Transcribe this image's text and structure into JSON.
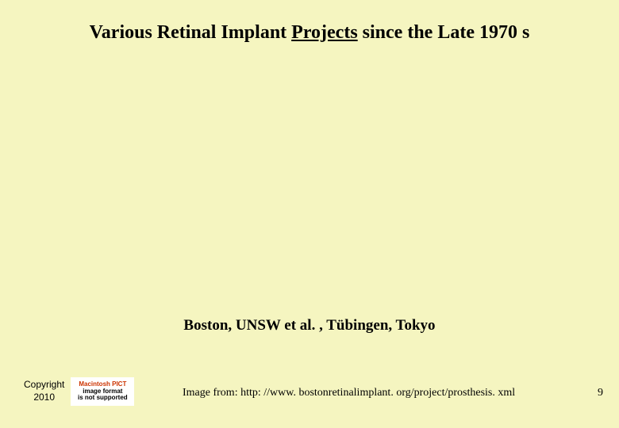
{
  "slide": {
    "title_part1": "Various Retinal Implant ",
    "title_underlined": "Projects",
    "title_part2": " since the Late 1970 s",
    "caption": "Boston, UNSW et al. , Tübingen, Tokyo",
    "copyright_line1": "Copyright",
    "copyright_line2": "2010",
    "image_error_line1": "Macintosh PICT",
    "image_error_line2": "image format",
    "image_error_line3": "is not supported",
    "image_source": "Image from: http: //www. bostonretinalimplant. org/project/prosthesis. xml",
    "page_number": "9",
    "background_color": "#f5f5c0",
    "title_fontsize": 24,
    "caption_fontsize": 19,
    "footer_fontsize": 14,
    "copyright_fontsize": 12
  }
}
